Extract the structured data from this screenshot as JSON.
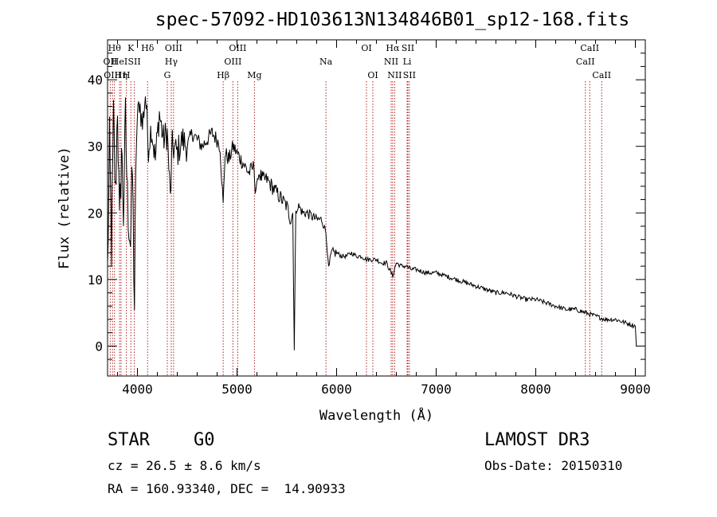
{
  "chart_data": {
    "type": "line",
    "title": "spec-57092-HD103613N134846B01_sp12-168.fits",
    "xlabel": "Wavelength (Å)",
    "ylabel": "Flux (relative)",
    "xlim": [
      3700,
      9100
    ],
    "ylim": [
      -4.5,
      46
    ],
    "xticks": [
      4000,
      5000,
      6000,
      7000,
      8000,
      9000
    ],
    "yticks": [
      0,
      10,
      20,
      30,
      40
    ],
    "series": [
      {
        "name": "spectrum",
        "points": [
          [
            3700,
            11
          ],
          [
            3720,
            30
          ],
          [
            3740,
            15
          ],
          [
            3760,
            34
          ],
          [
            3780,
            22
          ],
          [
            3800,
            37
          ],
          [
            3820,
            17
          ],
          [
            3840,
            30
          ],
          [
            3860,
            20
          ],
          [
            3880,
            34
          ],
          [
            3900,
            22
          ],
          [
            3930,
            16
          ],
          [
            3950,
            26
          ],
          [
            3970,
            6
          ],
          [
            3990,
            32
          ],
          [
            4020,
            37
          ],
          [
            4050,
            33
          ],
          [
            4080,
            38
          ],
          [
            4110,
            30
          ],
          [
            4140,
            33
          ],
          [
            4180,
            28
          ],
          [
            4220,
            35
          ],
          [
            4260,
            31
          ],
          [
            4300,
            32
          ],
          [
            4330,
            22
          ],
          [
            4350,
            30
          ],
          [
            4400,
            29
          ],
          [
            4450,
            31
          ],
          [
            4500,
            30
          ],
          [
            4550,
            32
          ],
          [
            4600,
            31
          ],
          [
            4650,
            30
          ],
          [
            4700,
            31
          ],
          [
            4750,
            32
          ],
          [
            4800,
            31
          ],
          [
            4830,
            30
          ],
          [
            4861,
            21
          ],
          [
            4880,
            29
          ],
          [
            4920,
            28
          ],
          [
            4960,
            30
          ],
          [
            5000,
            29
          ],
          [
            5040,
            28
          ],
          [
            5080,
            27
          ],
          [
            5120,
            26
          ],
          [
            5170,
            27
          ],
          [
            5183,
            23
          ],
          [
            5220,
            26
          ],
          [
            5260,
            25
          ],
          [
            5300,
            25
          ],
          [
            5350,
            24
          ],
          [
            5400,
            23
          ],
          [
            5450,
            22
          ],
          [
            5500,
            21
          ],
          [
            5540,
            19
          ],
          [
            5560,
            20
          ],
          [
            5575,
            -0.5
          ],
          [
            5590,
            20
          ],
          [
            5620,
            21
          ],
          [
            5660,
            20
          ],
          [
            5700,
            20
          ],
          [
            5750,
            19.5
          ],
          [
            5800,
            19
          ],
          [
            5850,
            19
          ],
          [
            5880,
            18
          ],
          [
            5893,
            17
          ],
          [
            5920,
            11.5
          ],
          [
            5950,
            14
          ],
          [
            6000,
            14
          ],
          [
            6050,
            13.5
          ],
          [
            6100,
            13.5
          ],
          [
            6150,
            14
          ],
          [
            6200,
            13.5
          ],
          [
            6250,
            13.5
          ],
          [
            6300,
            13
          ],
          [
            6350,
            13
          ],
          [
            6400,
            13
          ],
          [
            6450,
            12.5
          ],
          [
            6500,
            12.5
          ],
          [
            6563,
            10.5
          ],
          [
            6600,
            12.5
          ],
          [
            6650,
            12
          ],
          [
            6700,
            12
          ],
          [
            6750,
            11.5
          ],
          [
            6800,
            11.5
          ],
          [
            6900,
            11
          ],
          [
            7000,
            11
          ],
          [
            7100,
            10.5
          ],
          [
            7200,
            10
          ],
          [
            7300,
            9.5
          ],
          [
            7400,
            9
          ],
          [
            7500,
            8.5
          ],
          [
            7600,
            8
          ],
          [
            7700,
            8
          ],
          [
            7800,
            7.5
          ],
          [
            7900,
            7
          ],
          [
            8000,
            7
          ],
          [
            8100,
            6.5
          ],
          [
            8200,
            6
          ],
          [
            8300,
            5.5
          ],
          [
            8400,
            5.5
          ],
          [
            8500,
            5
          ],
          [
            8600,
            4.5
          ],
          [
            8700,
            4
          ],
          [
            8800,
            4
          ],
          [
            8900,
            3.5
          ],
          [
            9000,
            3
          ],
          [
            9010,
            0
          ]
        ]
      }
    ],
    "lines": [
      {
        "wl": 3727,
        "label": "OII",
        "row": 1
      },
      {
        "wl": 3750,
        "label": "OIII",
        "row": 2
      },
      {
        "wl": 3770,
        "label": "Hθ",
        "row": 0
      },
      {
        "wl": 3820,
        "label": "HeI",
        "row": 1
      },
      {
        "wl": 3835,
        "label": "Hη",
        "row": 2
      },
      {
        "wl": 3889,
        "label": "H",
        "row": 2
      },
      {
        "wl": 3934,
        "label": "K",
        "row": 0
      },
      {
        "wl": 3969,
        "label": "SII",
        "row": 1
      },
      {
        "wl": 4102,
        "label": "Hδ",
        "row": 0
      },
      {
        "wl": 4300,
        "label": "G",
        "row": 2
      },
      {
        "wl": 4340,
        "label": "Hγ",
        "row": 1
      },
      {
        "wl": 4363,
        "label": "OIII",
        "row": 0
      },
      {
        "wl": 4861,
        "label": "Hβ",
        "row": 2
      },
      {
        "wl": 4959,
        "label": "OIII",
        "row": 1
      },
      {
        "wl": 5007,
        "label": "OIII",
        "row": 0
      },
      {
        "wl": 5175,
        "label": "Mg",
        "row": 2
      },
      {
        "wl": 5893,
        "label": "Na",
        "row": 1
      },
      {
        "wl": 6300,
        "label": "OI",
        "row": 0
      },
      {
        "wl": 6364,
        "label": "OI",
        "row": 2
      },
      {
        "wl": 6548,
        "label": "NII",
        "row": 1
      },
      {
        "wl": 6563,
        "label": "Hα",
        "row": 0
      },
      {
        "wl": 6583,
        "label": "NII",
        "row": 2
      },
      {
        "wl": 6708,
        "label": "Li",
        "row": 1
      },
      {
        "wl": 6716,
        "label": "SII",
        "row": 0
      },
      {
        "wl": 6731,
        "label": "SII",
        "row": 2
      },
      {
        "wl": 8498,
        "label": "CaII",
        "row": 1
      },
      {
        "wl": 8542,
        "label": "CaII",
        "row": 0
      },
      {
        "wl": 8662,
        "label": "CaII",
        "row": 2
      }
    ],
    "line_color": "#b22222"
  },
  "info": {
    "object_type": "STAR",
    "subclass": "G0",
    "survey": "LAMOST DR3",
    "cz": "cz = 26.5 ± 8.6 km/s",
    "obs_date": "Obs-Date: 20150310",
    "coords": "RA = 160.93340, DEC =  14.90933"
  }
}
